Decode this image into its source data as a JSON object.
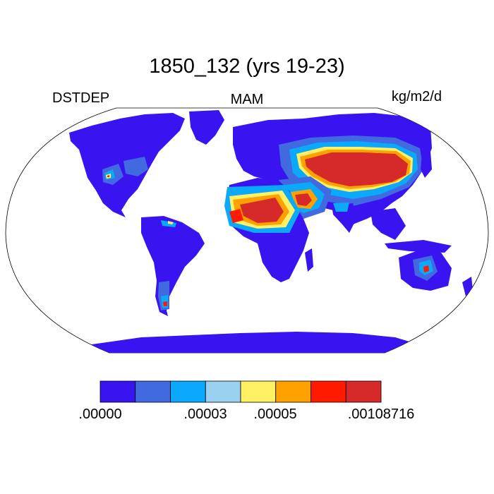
{
  "title": "1850_132 (yrs 19-23)",
  "left_label": "DSTDEP",
  "center_label": "MAM",
  "right_label": "kg/m2/d",
  "colorbar": {
    "colors": [
      "#3a14f0",
      "#416ae0",
      "#0aa9fb",
      "#9bd1f0",
      "#fff064",
      "#ffa100",
      "#ff1a00",
      "#d62a2a"
    ],
    "labels": [
      ".00000",
      ".00003",
      ".00005",
      ".00108716"
    ]
  }
}
